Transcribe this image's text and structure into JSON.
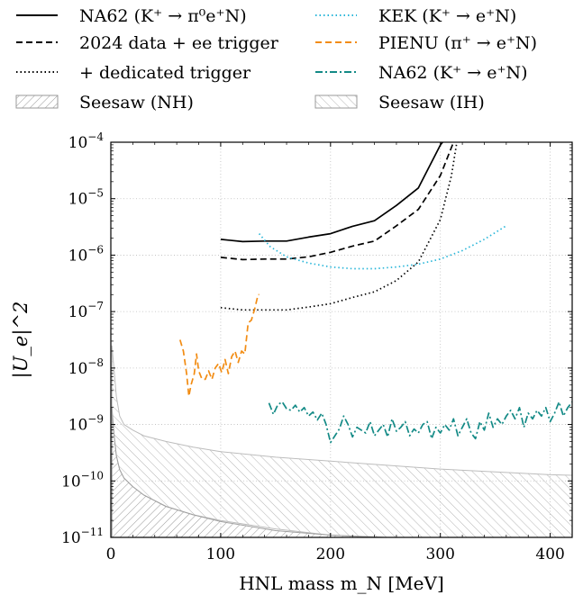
{
  "chart_data": {
    "type": "line",
    "xlabel": "HNL mass m_N [MeV]",
    "ylabel": "|U_e|^2",
    "xlim": [
      0,
      420
    ],
    "ylim_log10": [
      -11,
      -4
    ],
    "y_scale": "log",
    "grid": "dotted",
    "legend_position": "top",
    "x_ticks": [
      {
        "value": 0,
        "label": "0"
      },
      {
        "value": 100,
        "label": "100"
      },
      {
        "value": 200,
        "label": "200"
      },
      {
        "value": 300,
        "label": "300"
      },
      {
        "value": 400,
        "label": "400"
      }
    ],
    "y_ticks": [
      {
        "exp": -11,
        "base": "10",
        "sup": "−11"
      },
      {
        "exp": -10,
        "base": "10",
        "sup": "−10"
      },
      {
        "exp": -9,
        "base": "10",
        "sup": "−9"
      },
      {
        "exp": -8,
        "base": "10",
        "sup": "−8"
      },
      {
        "exp": -7,
        "base": "10",
        "sup": "−7"
      },
      {
        "exp": -6,
        "base": "10",
        "sup": "−6"
      },
      {
        "exp": -5,
        "base": "10",
        "sup": "−5"
      },
      {
        "exp": -4,
        "base": "10",
        "sup": "−4"
      }
    ],
    "legend": [
      {
        "label": "NA62 (K⁺ → π⁰e⁺N)",
        "color": "#000000",
        "dash": "solid"
      },
      {
        "label": "KEK (K⁺ → e⁺N)",
        "color": "#29b6d9",
        "dash": "dotted"
      },
      {
        "label": "2024 data + ee trigger",
        "color": "#000000",
        "dash": "dashed"
      },
      {
        "label": "PIENU (π⁺ → e⁺N)",
        "color": "#f28c13",
        "dash": "dashed"
      },
      {
        "label": "+ dedicated trigger",
        "color": "#000000",
        "dash": "dotted"
      },
      {
        "label": "NA62 (K⁺ → e⁺N)",
        "color": "#138a86",
        "dash": "dashdot"
      },
      {
        "label": "Seesaw (NH)",
        "color": "#aaaaaa",
        "dash": "hatch-nh"
      },
      {
        "label": "Seesaw (IH)",
        "color": "#bbbbbb",
        "dash": "hatch-ih"
      }
    ],
    "series": [
      {
        "name": "NA62 (K⁺ → π⁰e⁺N)",
        "color": "#000000",
        "dash": "solid",
        "x": [
          100,
          120,
          140,
          160,
          180,
          200,
          220,
          240,
          260,
          280,
          300,
          302
        ],
        "log10_y": [
          -5.72,
          -5.76,
          -5.75,
          -5.75,
          -5.68,
          -5.62,
          -5.49,
          -5.39,
          -5.12,
          -4.81,
          -4.05,
          -4.0
        ]
      },
      {
        "name": "2024 data + ee trigger",
        "color": "#000000",
        "dash": "dashed",
        "x": [
          100,
          120,
          140,
          160,
          180,
          200,
          220,
          240,
          260,
          280,
          300,
          312
        ],
        "log10_y": [
          -6.04,
          -6.08,
          -6.07,
          -6.07,
          -6.03,
          -5.95,
          -5.84,
          -5.75,
          -5.48,
          -5.19,
          -4.59,
          -4.0
        ]
      },
      {
        "name": "+ dedicated trigger",
        "color": "#000000",
        "dash": "dotted",
        "x": [
          100,
          120,
          140,
          160,
          180,
          200,
          220,
          240,
          260,
          280,
          300,
          310,
          315
        ],
        "log10_y": [
          -6.93,
          -6.97,
          -6.97,
          -6.97,
          -6.92,
          -6.86,
          -6.75,
          -6.65,
          -6.45,
          -6.12,
          -5.37,
          -4.6,
          -4.0
        ]
      },
      {
        "name": "KEK (K⁺ → e⁺N)",
        "color": "#29b6d9",
        "dash": "dotted",
        "x": [
          135,
          145,
          160,
          180,
          200,
          220,
          240,
          260,
          280,
          300,
          320,
          340,
          360
        ],
        "log10_y": [
          -5.62,
          -5.85,
          -6.03,
          -6.14,
          -6.21,
          -6.24,
          -6.24,
          -6.21,
          -6.16,
          -6.07,
          -5.92,
          -5.72,
          -5.48
        ]
      },
      {
        "name": "PIENU (π⁺ → e⁺N)",
        "color": "#f28c13",
        "dash": "dashed",
        "x": [
          63,
          66,
          69,
          71,
          73,
          76,
          78,
          80,
          83,
          86,
          89,
          92,
          95,
          98,
          101,
          104,
          107,
          110,
          113,
          116,
          119,
          122,
          125,
          128,
          131,
          134,
          135
        ],
        "log10_y": [
          -7.5,
          -7.7,
          -8.1,
          -8.5,
          -8.3,
          -8.1,
          -7.75,
          -8.05,
          -8.2,
          -8.2,
          -8.05,
          -8.2,
          -8.0,
          -7.92,
          -8.08,
          -7.85,
          -8.1,
          -7.8,
          -7.7,
          -7.9,
          -7.7,
          -7.75,
          -7.2,
          -7.15,
          -6.95,
          -6.7,
          -6.7
        ]
      },
      {
        "name": "NA62 (K⁺ → e⁺N)",
        "color": "#138a86",
        "dash": "dashdot",
        "x": [
          144,
          148,
          152,
          156,
          160,
          164,
          168,
          172,
          176,
          180,
          184,
          188,
          192,
          196,
          200,
          204,
          208,
          212,
          216,
          220,
          224,
          228,
          232,
          236,
          240,
          244,
          248,
          252,
          256,
          260,
          264,
          268,
          272,
          276,
          280,
          284,
          288,
          292,
          296,
          300,
          304,
          308,
          312,
          316,
          320,
          324,
          328,
          332,
          336,
          340,
          344,
          348,
          352,
          356,
          360,
          364,
          368,
          372,
          376,
          380,
          384,
          388,
          392,
          396,
          400,
          404,
          408,
          412,
          416,
          420
        ],
        "log10_y": [
          -8.62,
          -8.82,
          -8.65,
          -8.6,
          -8.72,
          -8.75,
          -8.66,
          -8.78,
          -8.7,
          -8.85,
          -8.78,
          -8.92,
          -8.8,
          -9.0,
          -9.32,
          -9.2,
          -9.08,
          -8.85,
          -9.0,
          -9.22,
          -9.05,
          -9.1,
          -9.15,
          -8.95,
          -9.2,
          -9.1,
          -9.0,
          -9.22,
          -8.9,
          -9.12,
          -9.05,
          -8.95,
          -9.2,
          -9.08,
          -9.15,
          -9.0,
          -8.95,
          -9.25,
          -9.05,
          -9.15,
          -9.0,
          -9.1,
          -8.9,
          -9.2,
          -9.05,
          -8.9,
          -9.15,
          -9.25,
          -8.95,
          -9.1,
          -8.8,
          -9.05,
          -8.9,
          -9.0,
          -8.85,
          -8.75,
          -8.9,
          -8.7,
          -9.05,
          -8.8,
          -8.9,
          -8.75,
          -8.85,
          -8.7,
          -8.95,
          -8.8,
          -8.6,
          -8.85,
          -8.7,
          -8.6
        ]
      }
    ],
    "bands": [
      {
        "name": "Seesaw (IH)",
        "x": [
          1,
          3,
          5,
          8,
          12,
          20,
          30,
          50,
          75,
          100,
          150,
          200,
          250,
          300,
          350,
          400,
          420
        ],
        "upper_log10": [
          -7.6,
          -8.05,
          -8.5,
          -8.85,
          -9.0,
          -9.1,
          -9.2,
          -9.3,
          -9.4,
          -9.48,
          -9.58,
          -9.65,
          -9.72,
          -9.79,
          -9.84,
          -9.89,
          -9.9
        ],
        "lower_log10": [
          -8.75,
          -9.2,
          -9.55,
          -9.8,
          -9.95,
          -10.1,
          -10.25,
          -10.45,
          -10.6,
          -10.7,
          -10.85,
          -10.96,
          -11.0,
          -11.0,
          -11.0,
          -11.0,
          -11.0
        ]
      },
      {
        "name": "Seesaw (NH)",
        "x": [
          1,
          3,
          5,
          8,
          12,
          20,
          30,
          50,
          75,
          100,
          150,
          200,
          250,
          280
        ],
        "upper_log10": [
          -8.7,
          -9.2,
          -9.55,
          -9.8,
          -9.95,
          -10.1,
          -10.25,
          -10.45,
          -10.6,
          -10.72,
          -10.88,
          -10.96,
          -11.0,
          -11.0
        ],
        "lower_log10": [
          -11.0,
          -11.0,
          -11.0,
          -11.0,
          -11.0,
          -11.0,
          -11.0,
          -11.0,
          -11.0,
          -11.0,
          -11.0,
          -11.0,
          -11.0,
          -11.0
        ]
      }
    ]
  }
}
